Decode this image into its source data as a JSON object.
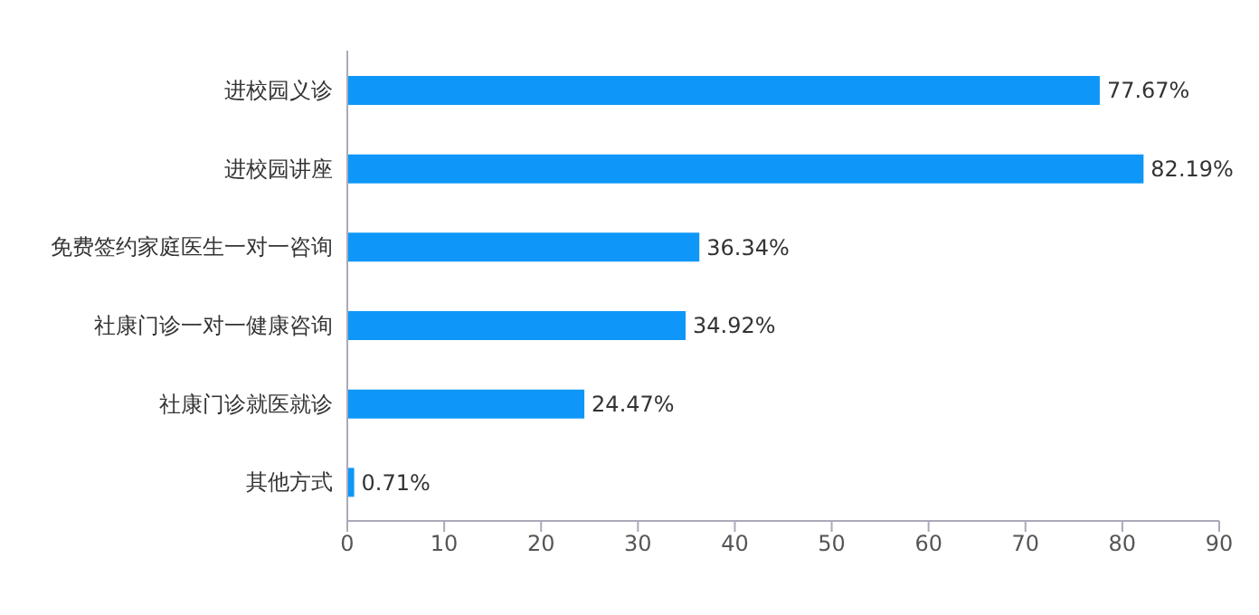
{
  "chart_data": {
    "type": "bar",
    "orientation": "horizontal",
    "categories": [
      "进校园义诊",
      "进校园讲座",
      "免费签约家庭医生一对一咨询",
      "社康门诊一对一健康咨询",
      "社康门诊就医就诊",
      "其他方式"
    ],
    "values": [
      77.67,
      82.19,
      36.34,
      34.92,
      24.47,
      0.71
    ],
    "value_labels": [
      "77.67%",
      "82.19%",
      "36.34%",
      "34.92%",
      "24.47%",
      "0.71%"
    ],
    "color": "#0e97f8",
    "xlim": [
      0,
      90
    ],
    "xticks": [
      0,
      10,
      20,
      30,
      40,
      50,
      60,
      70,
      80,
      90
    ],
    "grid": false,
    "legend": false
  }
}
